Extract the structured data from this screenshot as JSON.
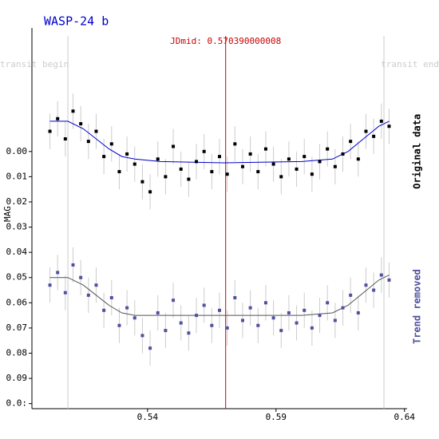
{
  "chart_data": {
    "type": "scatter",
    "title": "WASP-24 b",
    "ylabel": "MAG",
    "xlim": [
      0.495,
      0.641
    ],
    "ylim": [
      -0.049,
      0.102
    ],
    "inverted_y": true,
    "xticks": [
      0.54,
      0.59,
      0.64
    ],
    "yticks": [
      {
        "value": 0,
        "label": "0.00"
      },
      {
        "value": 0.01,
        "label": "0.01"
      },
      {
        "value": 0.02,
        "label": "0.02"
      },
      {
        "value": 0.03,
        "label": "0.03"
      },
      {
        "value": 0.04,
        "label": "0.04"
      },
      {
        "value": 0.05,
        "label": "0.05"
      },
      {
        "value": 0.06,
        "label": "0.06"
      },
      {
        "value": 0.07,
        "label": "0.07"
      },
      {
        "value": 0.08,
        "label": "0.08"
      },
      {
        "value": 0.09,
        "label": "0.09"
      },
      {
        "value": 0.1,
        "label": "0.0:"
      }
    ],
    "vlines": [
      {
        "value": 0.509,
        "label": "transit begin",
        "color": "#cccccc"
      },
      {
        "value": 0.570390000008,
        "label": "JDmid: 0.570390000008",
        "color": "#cc0000"
      },
      {
        "value": 0.632,
        "label": "transit end",
        "color": "#cccccc"
      }
    ],
    "x": [
      0.502,
      0.505,
      0.508,
      0.511,
      0.514,
      0.517,
      0.52,
      0.523,
      0.526,
      0.529,
      0.532,
      0.535,
      0.538,
      0.541,
      0.544,
      0.547,
      0.55,
      0.553,
      0.556,
      0.559,
      0.562,
      0.565,
      0.568,
      0.571,
      0.574,
      0.577,
      0.58,
      0.583,
      0.586,
      0.589,
      0.592,
      0.595,
      0.598,
      0.601,
      0.604,
      0.607,
      0.61,
      0.613,
      0.616,
      0.619,
      0.622,
      0.625,
      0.628,
      0.631,
      0.634
    ],
    "series": [
      {
        "name": "Original data",
        "color": "#000000",
        "error": 0.007,
        "error_color": "#cccccc",
        "values": [
          -0.008,
          -0.013,
          -0.005,
          -0.016,
          -0.011,
          -0.004,
          -0.008,
          0.002,
          -0.003,
          0.008,
          0.001,
          0.005,
          0.012,
          0.016,
          0.003,
          0.01,
          -0.002,
          0.007,
          0.011,
          0.004,
          0.0,
          0.008,
          0.002,
          0.009,
          -0.003,
          0.006,
          0.001,
          0.008,
          -0.001,
          0.005,
          0.01,
          0.003,
          0.007,
          0.002,
          0.009,
          0.004,
          -0.001,
          0.006,
          0.001,
          -0.004,
          0.003,
          -0.008,
          -0.006,
          -0.012,
          -0.01
        ],
        "trend": {
          "color": "#0000cc",
          "x": [
            0.502,
            0.509,
            0.515,
            0.52,
            0.525,
            0.53,
            0.535,
            0.545,
            0.57,
            0.6,
            0.612,
            0.618,
            0.624,
            0.63,
            0.634
          ],
          "values": [
            -0.012,
            -0.012,
            -0.009,
            -0.005,
            -0.001,
            0.002,
            0.003,
            0.004,
            0.0045,
            0.004,
            0.003,
            0.0,
            -0.005,
            -0.01,
            -0.012
          ]
        }
      },
      {
        "name": "Trend removed",
        "color": "#5050a0",
        "error": 0.007,
        "error_color": "#cccccc",
        "values": [
          0.053,
          0.048,
          0.056,
          0.045,
          0.05,
          0.057,
          0.053,
          0.063,
          0.058,
          0.069,
          0.062,
          0.066,
          0.073,
          0.078,
          0.064,
          0.071,
          0.059,
          0.068,
          0.072,
          0.065,
          0.061,
          0.069,
          0.063,
          0.07,
          0.058,
          0.067,
          0.062,
          0.069,
          0.06,
          0.066,
          0.071,
          0.064,
          0.068,
          0.063,
          0.07,
          0.065,
          0.06,
          0.067,
          0.062,
          0.057,
          0.064,
          0.053,
          0.055,
          0.049,
          0.051
        ],
        "trend": {
          "color": "#555555",
          "x": [
            0.502,
            0.509,
            0.515,
            0.52,
            0.525,
            0.53,
            0.535,
            0.545,
            0.57,
            0.6,
            0.612,
            0.618,
            0.624,
            0.63,
            0.634
          ],
          "values": [
            0.05,
            0.05,
            0.053,
            0.057,
            0.061,
            0.064,
            0.065,
            0.065,
            0.065,
            0.065,
            0.064,
            0.061,
            0.056,
            0.051,
            0.049
          ]
        }
      }
    ]
  }
}
